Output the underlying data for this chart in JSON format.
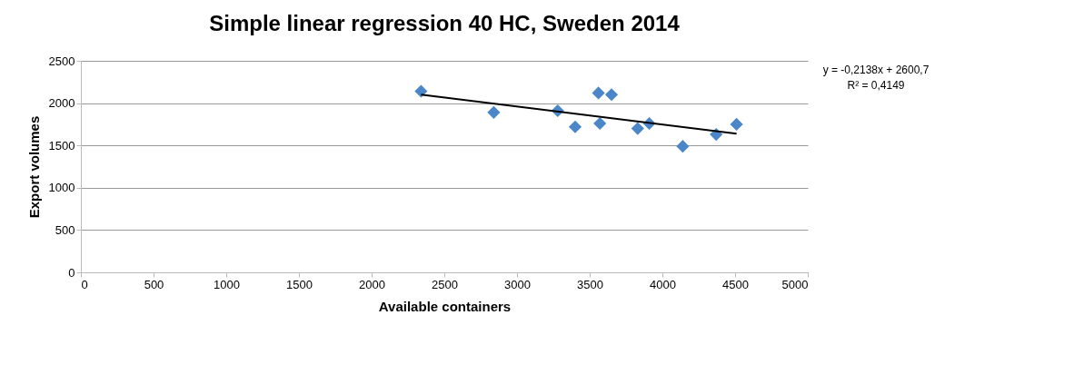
{
  "chart_data": {
    "type": "scatter",
    "title": "Simple linear regression 40 HC, Sweden 2014",
    "xlabel": "Available containers",
    "ylabel": "Export volumes",
    "xlim": [
      0,
      5000
    ],
    "xticks": [
      0,
      500,
      1000,
      1500,
      2000,
      2500,
      3000,
      3500,
      4000,
      4500,
      5000
    ],
    "ylim": [
      0,
      2500
    ],
    "yticks": [
      0,
      500,
      1000,
      1500,
      2000,
      2500
    ],
    "grid": "y",
    "series": [
      {
        "color": "#4a86c8",
        "marker": "diamond",
        "x": [
          2340,
          2840,
          3280,
          3400,
          3560,
          3570,
          3650,
          3830,
          3910,
          4140,
          4370,
          4510
        ],
        "values": [
          2140,
          1890,
          1910,
          1720,
          2120,
          1760,
          2100,
          1700,
          1760,
          1490,
          1630,
          1750
        ]
      },
      {
        "type": "line",
        "color": "#000000",
        "x": [
          2340,
          4510
        ],
        "values": [
          2100,
          1640
        ]
      }
    ],
    "annotations": [
      "y = -0,2138x + 2600,7",
      "R² = 0,4149"
    ]
  }
}
